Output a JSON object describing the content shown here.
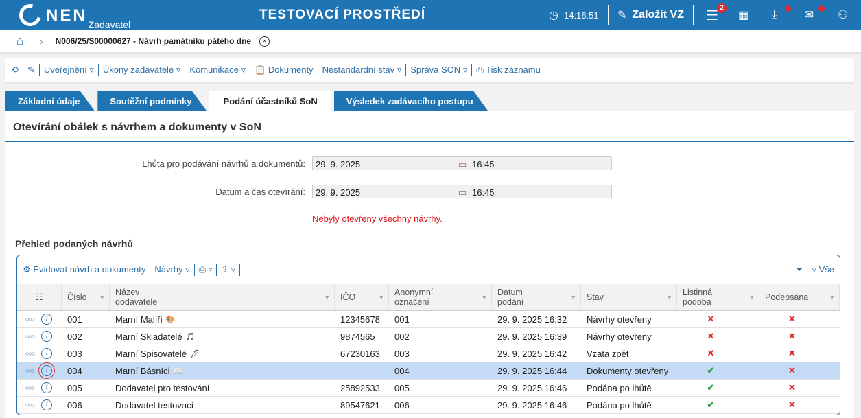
{
  "header": {
    "logo": "NEN",
    "logo_sub": "Zadavatel",
    "environment": "TESTOVACÍ PROSTŘEDÍ",
    "time": "14:16:51",
    "create_label": "Založit VZ",
    "menu_badge": "2",
    "colors": {
      "primary": "#1f74b3",
      "badge": "#e0282e"
    }
  },
  "breadcrumb": {
    "title": "N006/25/S00000627 - Návrh památníku pátého dne"
  },
  "toolbar": {
    "items": [
      "Uveřejnění",
      "Úkony zadavatele",
      "Komunikace",
      "Dokumenty",
      "Nestandardní stav",
      "Správa SON",
      "Tisk záznamu"
    ]
  },
  "tabs": [
    "Základní údaje",
    "Soutěžní podmínky",
    "Podání účastníků SoN",
    "Výsledek zadávacího postupu"
  ],
  "panel": {
    "title": "Otevírání obálek s návrhem a dokumenty v SoN",
    "fields": [
      {
        "label": "Lhůta pro podávání návrhů a dokumentů:",
        "date": "29. 9. 2025",
        "time": "16:45"
      },
      {
        "label": "Datum a čas otevírání:",
        "date": "29. 9. 2025",
        "time": "16:45"
      }
    ],
    "error": "Nebyly otevřeny všechny návrhy.",
    "subtitle": "Přehled podaných návrhů"
  },
  "table": {
    "toolbar": {
      "add": "Evidovat návrh a dokumenty",
      "proposals": "Návrhy",
      "filter_all": "Vše"
    },
    "columns": [
      "Číslo",
      "Název dodavatele",
      "IČO",
      "Anonymní označení",
      "Datum podání",
      "Stav",
      "Listinná podoba",
      "Podepsána"
    ],
    "rows": [
      {
        "cislo": "001",
        "nazev": "Marní Malíři",
        "emoji": "🎨",
        "ico": "12345678",
        "anon": "001",
        "datum": "29. 9. 2025 16:32",
        "stav": "Návrhy otevřeny",
        "listinna": "✕",
        "podepsana": "✕"
      },
      {
        "cislo": "002",
        "nazev": "Marní Skladatelé",
        "emoji": "🎵",
        "ico": "9874565",
        "anon": "002",
        "datum": "29. 9. 2025 16:39",
        "stav": "Návrhy otevřeny",
        "listinna": "✕",
        "podepsana": "✕"
      },
      {
        "cislo": "003",
        "nazev": "Marní Spisovatelé",
        "emoji": "🖊",
        "ico": "67230163",
        "anon": "003",
        "datum": "29. 9. 2025 16:42",
        "stav": "Vzata zpět",
        "listinna": "✕",
        "podepsana": "✕"
      },
      {
        "cislo": "004",
        "nazev": "Marní Básníci",
        "emoji": "📖",
        "ico": "",
        "anon": "004",
        "datum": "29. 9. 2025 16:44",
        "stav": "Dokumenty otevřeny",
        "listinna": "✔",
        "podepsana": "✕",
        "selected": true
      },
      {
        "cislo": "005",
        "nazev": "Dodavatel pro testování",
        "emoji": "",
        "ico": "25892533",
        "anon": "005",
        "datum": "29. 9. 2025 16:46",
        "stav": "Podána po lhůtě",
        "listinna": "✔",
        "podepsana": "✕"
      },
      {
        "cislo": "006",
        "nazev": "Dodavatel testovací",
        "emoji": "",
        "ico": "89547621",
        "anon": "006",
        "datum": "29. 9. 2025 16:46",
        "stav": "Podána po lhůtě",
        "listinna": "✔",
        "podepsana": "✕"
      }
    ]
  }
}
